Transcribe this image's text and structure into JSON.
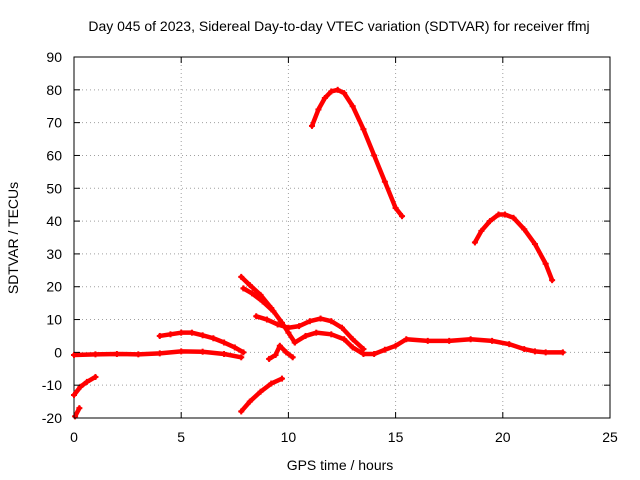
{
  "chart_data": {
    "type": "scatter",
    "title": "Day 045 of 2023, Sidereal Day-to-day VTEC variation (SDTVAR) for receiver ffmj",
    "xlabel": "GPS time / hours",
    "ylabel": "SDTVAR / TECUs",
    "xlim": [
      0,
      25
    ],
    "ylim": [
      -20,
      90
    ],
    "xticks": [
      "0",
      "5",
      "10",
      "15",
      "20",
      "25"
    ],
    "yticks": [
      "-20",
      "-10",
      "0",
      "10",
      "20",
      "30",
      "40",
      "50",
      "60",
      "70",
      "80",
      "90"
    ],
    "grid": true,
    "marker_color": "#ff0000",
    "series": [
      {
        "name": "baseline-early",
        "x": [
          0,
          1,
          2,
          3,
          4,
          5,
          6,
          7,
          7.8
        ],
        "y": [
          -0.8,
          -0.6,
          -0.5,
          -0.6,
          -0.3,
          0.3,
          0.2,
          -0.5,
          -1.5
        ]
      },
      {
        "name": "bump-5h",
        "x": [
          4,
          4.5,
          5,
          5.5,
          6,
          6.5,
          7,
          7.5,
          7.9
        ],
        "y": [
          5,
          5.5,
          6,
          6,
          5.2,
          4.3,
          3,
          1.5,
          0
        ]
      },
      {
        "name": "neg-start",
        "x": [
          0,
          0.3,
          0.6,
          1.0
        ],
        "y": [
          -13,
          -10.5,
          -9,
          -7.5
        ]
      },
      {
        "name": "neg-start-2",
        "x": [
          0.05,
          0.25
        ],
        "y": [
          -19.5,
          -17
        ]
      },
      {
        "name": "drop-8h",
        "x": [
          7.8,
          8.2,
          8.7,
          9.2,
          9.7,
          10.0,
          10.3
        ],
        "y": [
          23,
          20.5,
          17.5,
          13.5,
          9,
          6,
          3
        ]
      },
      {
        "name": "drop-8h-lower",
        "x": [
          7.9,
          8.3,
          8.8,
          9.3
        ],
        "y": [
          19.5,
          18,
          15.5,
          12.5
        ]
      },
      {
        "name": "rise-8h",
        "x": [
          7.8,
          8.2,
          8.7,
          9.2,
          9.7
        ],
        "y": [
          -18,
          -15,
          -12,
          -9.5,
          -8
        ]
      },
      {
        "name": "wave-9h",
        "x": [
          8.5,
          9.0,
          9.5,
          10.0,
          10.5,
          11.0,
          11.5,
          12.0,
          12.5,
          13.0,
          13.5
        ],
        "y": [
          11,
          10,
          8.5,
          7.5,
          8,
          9.5,
          10.3,
          9.5,
          7.5,
          4,
          1
        ]
      },
      {
        "name": "dip-9h",
        "x": [
          9.1,
          9.4,
          9.6,
          9.9,
          10.2
        ],
        "y": [
          -2,
          -0.8,
          2,
          0,
          -1.5
        ]
      },
      {
        "name": "baseline-main",
        "x": [
          10.3,
          10.8,
          11.3,
          12.0,
          12.6,
          13.0,
          13.5,
          14.0,
          14.5,
          15.0,
          15.5,
          16.5,
          17.5,
          18.5,
          19.5,
          20.3,
          21.0,
          21.5,
          22.0,
          22.8
        ],
        "y": [
          3,
          5,
          6,
          5.5,
          4,
          1.5,
          -0.5,
          -0.5,
          0.8,
          2,
          4,
          3.5,
          3.5,
          4,
          3.5,
          2.5,
          1,
          0.3,
          0,
          0
        ]
      },
      {
        "name": "arc-12h",
        "x": [
          11.1,
          11.4,
          11.7,
          12.0,
          12.3,
          12.6,
          13.0,
          13.5,
          14.0,
          14.5,
          15.0,
          15.3
        ],
        "y": [
          69,
          74,
          77.5,
          79.5,
          80,
          79,
          75,
          68,
          60,
          52,
          44,
          41.5
        ]
      },
      {
        "name": "arc-20h",
        "x": [
          18.7,
          19.0,
          19.4,
          19.8,
          20.1,
          20.5,
          21.0,
          21.5,
          22.0,
          22.3
        ],
        "y": [
          33.5,
          37,
          40,
          42,
          42,
          41,
          37.5,
          33,
          27,
          22
        ]
      }
    ]
  }
}
